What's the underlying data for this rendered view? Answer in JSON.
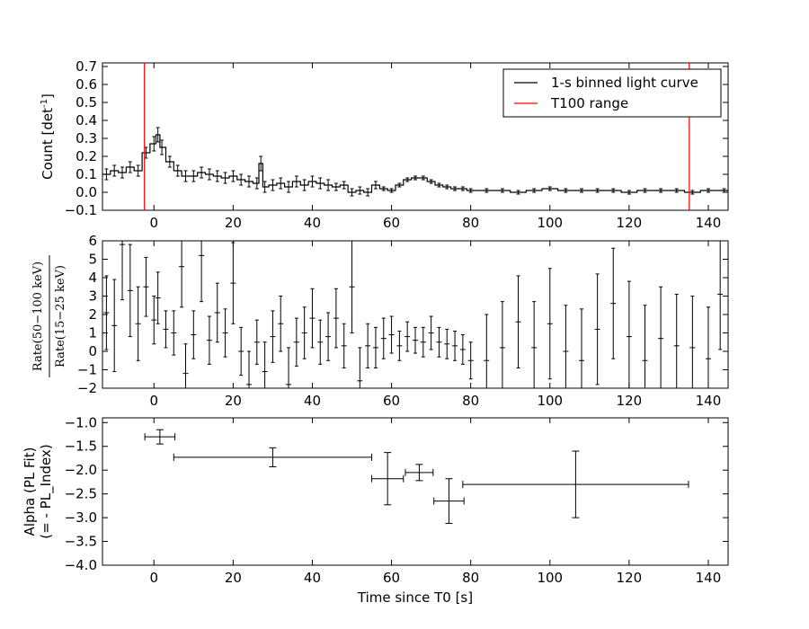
{
  "chart_data": [
    {
      "type": "line",
      "panel": "top",
      "ylabel": "Count [det",
      "ylabel_sup": "-1",
      "ylabel_end": "]",
      "xlim": [
        -13,
        145
      ],
      "ylim": [
        -0.1,
        0.72
      ],
      "xticks": [
        "0",
        "20",
        "40",
        "60",
        "80",
        "100",
        "120",
        "140"
      ],
      "yticks": [
        "−0.1",
        "0.0",
        "0.1",
        "0.2",
        "0.3",
        "0.4",
        "0.5",
        "0.6",
        "0.7"
      ],
      "legend": {
        "placement": "top-right",
        "entries": [
          {
            "name": "1-s binned light curve",
            "color": "#000000"
          },
          {
            "name": "T100 range",
            "color": "#ff0000"
          }
        ]
      },
      "t100_range": [
        -2.4,
        135.2
      ],
      "series": [
        {
          "name": "1-s binned light curve",
          "color": "#000000",
          "x": [
            -12,
            -10,
            -8,
            -6,
            -4,
            -2,
            0,
            1,
            2,
            4,
            6,
            8,
            10,
            12,
            14,
            16,
            18,
            20,
            22,
            24,
            26,
            27,
            28,
            30,
            32,
            34,
            36,
            38,
            40,
            42,
            44,
            46,
            48,
            50,
            52,
            54,
            56,
            58,
            60,
            62,
            64,
            66,
            68,
            70,
            72,
            74,
            76,
            78,
            80,
            84,
            88,
            92,
            96,
            100,
            104,
            108,
            112,
            116,
            120,
            124,
            128,
            132,
            136,
            140,
            144
          ],
          "y": [
            0.1,
            0.12,
            0.11,
            0.14,
            0.12,
            0.22,
            0.27,
            0.32,
            0.25,
            0.17,
            0.12,
            0.09,
            0.09,
            0.11,
            0.1,
            0.09,
            0.08,
            0.09,
            0.07,
            0.06,
            0.05,
            0.16,
            0.03,
            0.04,
            0.05,
            0.03,
            0.06,
            0.04,
            0.06,
            0.05,
            0.04,
            0.03,
            0.04,
            0.0,
            0.01,
            0.0,
            0.04,
            0.02,
            0.01,
            0.04,
            0.07,
            0.08,
            0.08,
            0.06,
            0.04,
            0.03,
            0.02,
            0.02,
            0.01,
            0.01,
            0.01,
            0.0,
            0.01,
            0.02,
            0.01,
            0.01,
            0.01,
            0.01,
            0.0,
            0.01,
            0.01,
            0.01,
            0.0,
            0.01,
            0.01
          ],
          "err": [
            0.03,
            0.03,
            0.03,
            0.03,
            0.03,
            0.03,
            0.04,
            0.04,
            0.04,
            0.03,
            0.03,
            0.03,
            0.03,
            0.03,
            0.03,
            0.03,
            0.03,
            0.03,
            0.03,
            0.03,
            0.03,
            0.04,
            0.03,
            0.03,
            0.03,
            0.03,
            0.03,
            0.03,
            0.03,
            0.03,
            0.03,
            0.02,
            0.02,
            0.02,
            0.02,
            0.02,
            0.02,
            0.01,
            0.01,
            0.01,
            0.01,
            0.01,
            0.01,
            0.01,
            0.01,
            0.01,
            0.01,
            0.01,
            0.01,
            0.01,
            0.01,
            0.01,
            0.01,
            0.01,
            0.01,
            0.01,
            0.01,
            0.01,
            0.01,
            0.01,
            0.01,
            0.01,
            0.01,
            0.01,
            0.01
          ]
        }
      ]
    },
    {
      "type": "scatter",
      "panel": "middle",
      "ylabel_num": "Rate(50−100 keV)",
      "ylabel_den": "Rate(15−25 keV)",
      "xlim": [
        -13,
        145
      ],
      "ylim": [
        -2,
        6
      ],
      "xticks": [
        "0",
        "20",
        "40",
        "60",
        "80",
        "100",
        "120",
        "140"
      ],
      "yticks": [
        "−2",
        "−1",
        "0",
        "1",
        "2",
        "3",
        "4",
        "5",
        "6"
      ],
      "series": [
        {
          "name": "",
          "color": "#000000",
          "x": [
            -12,
            -10,
            -8,
            -6,
            -4,
            -2,
            0,
            1,
            3,
            5,
            7,
            8,
            10,
            12,
            14,
            16,
            18,
            20,
            22,
            24,
            26,
            28,
            30,
            32,
            34,
            36,
            38,
            40,
            42,
            44,
            46,
            48,
            50,
            52,
            54,
            56,
            58,
            60,
            62,
            64,
            66,
            68,
            70,
            72,
            74,
            76,
            78,
            80,
            84,
            88,
            92,
            96,
            100,
            104,
            108,
            112,
            116,
            120,
            124,
            128,
            132,
            136,
            140,
            143
          ],
          "y": [
            2.1,
            1.4,
            5.8,
            3.3,
            1.5,
            3.5,
            1.7,
            2.9,
            1.2,
            1.0,
            4.6,
            -1.2,
            0.9,
            5.2,
            0.6,
            2.1,
            1.0,
            3.7,
            0.0,
            -1.8,
            0.5,
            -1.1,
            0.8,
            1.5,
            -1.8,
            0.5,
            1.0,
            1.8,
            0.5,
            0.8,
            1.8,
            0.3,
            3.5,
            -1.6,
            0.3,
            0.2,
            0.7,
            0.9,
            0.3,
            0.8,
            0.6,
            0.5,
            1.0,
            0.5,
            0.4,
            0.3,
            0.1,
            -0.5,
            -0.5,
            0.2,
            1.6,
            0.2,
            1.5,
            0.0,
            -0.5,
            1.2,
            2.6,
            0.8,
            -0.5,
            0.7,
            0.3,
            0.2,
            -0.4,
            3.1
          ],
          "err": [
            2.0,
            2.5,
            3.0,
            2.5,
            2.0,
            1.6,
            1.3,
            1.4,
            1.0,
            1.2,
            2.2,
            1.6,
            1.3,
            2.5,
            1.3,
            1.6,
            1.3,
            2.2,
            1.3,
            1.8,
            1.2,
            1.6,
            1.4,
            1.5,
            2.0,
            1.3,
            1.4,
            1.6,
            1.2,
            1.3,
            1.6,
            1.2,
            2.5,
            1.8,
            1.2,
            1.1,
            1.1,
            1.0,
            0.8,
            0.8,
            0.7,
            0.8,
            0.9,
            0.8,
            0.8,
            0.8,
            0.8,
            1.0,
            2.5,
            2.5,
            2.5,
            2.5,
            3.0,
            2.5,
            2.8,
            3.0,
            3.0,
            3.0,
            3.0,
            2.8,
            2.8,
            2.8,
            2.8,
            3.0
          ]
        }
      ]
    },
    {
      "type": "scatter",
      "panel": "bottom",
      "xlabel": "Time since T0 [s]",
      "ylabel_line1": "Alpha (PL Fit)",
      "ylabel_line2": "(= - PL_Index)",
      "xlim": [
        -13,
        145
      ],
      "ylim": [
        -4.0,
        -0.9
      ],
      "xticks": [
        "0",
        "20",
        "40",
        "60",
        "80",
        "100",
        "120",
        "140"
      ],
      "yticks": [
        "−4.0",
        "−3.5",
        "−3.0",
        "−2.5",
        "−2.0",
        "−1.5",
        "−1.0"
      ],
      "series": [
        {
          "name": "",
          "color": "#000000",
          "x": [
            1.5,
            30.0,
            59.0,
            67.0,
            74.5,
            106.5
          ],
          "xerr": [
            3.8,
            25.0,
            4.0,
            3.5,
            3.8,
            28.5
          ],
          "y": [
            -1.3,
            -1.73,
            -2.18,
            -2.05,
            -2.65,
            -2.3
          ],
          "yerr": [
            0.15,
            0.2,
            0.55,
            0.17,
            0.47,
            0.7
          ]
        }
      ]
    }
  ]
}
